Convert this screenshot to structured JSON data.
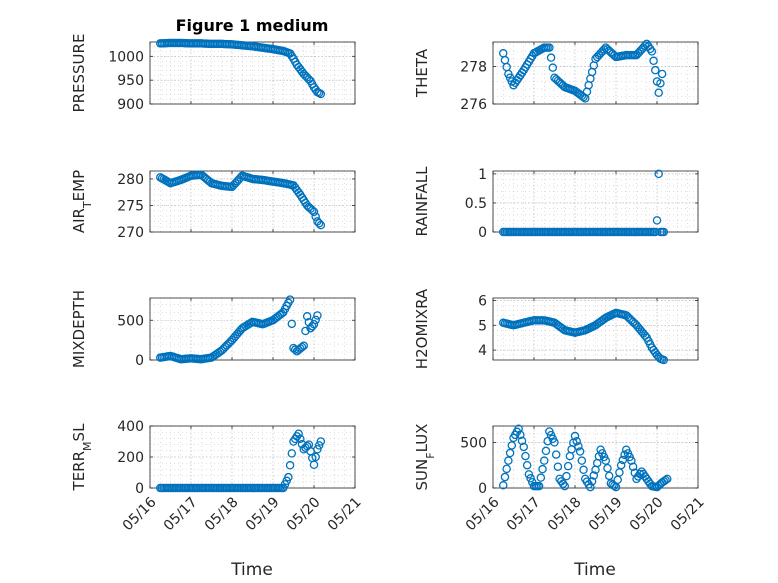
{
  "title": "Figure 1 medium",
  "xlabel": "Time",
  "x_tick_labels": [
    "05/16",
    "05/17",
    "05/18",
    "05/19",
    "05/20",
    "05/21"
  ],
  "colors": {
    "marker": "#0072BD",
    "axis": "#262626",
    "grid": "#b0b0b0"
  },
  "chart_data": [
    {
      "type": "scatter",
      "ylabel": "PRESSURE",
      "ylim": [
        900,
        1030
      ],
      "yticks": [
        900,
        950,
        1000
      ],
      "grid": true,
      "x": [
        "05/16 06:00",
        "05/16 12:00",
        "05/16 18:00",
        "05/17 00:00",
        "05/17 06:00",
        "05/17 12:00",
        "05/17 18:00",
        "05/18 00:00",
        "05/18 06:00",
        "05/18 12:00",
        "05/18 18:00",
        "05/19 00:00",
        "05/19 06:00",
        "05/19 10:00",
        "05/19 12:00",
        "05/19 14:00",
        "05/19 18:00",
        "05/19 22:00",
        "05/20 00:00",
        "05/20 02:00",
        "05/20 04:00"
      ],
      "values": [
        1027,
        1028,
        1028,
        1027,
        1027,
        1026,
        1026,
        1025,
        1023,
        1021,
        1018,
        1015,
        1011,
        1006,
        995,
        982,
        963,
        948,
        935,
        925,
        921
      ]
    },
    {
      "type": "scatter",
      "ylabel": "THETA",
      "ylim": [
        276,
        279.3
      ],
      "yticks": [
        276,
        278
      ],
      "grid": true,
      "x": [
        "05/16 06:00",
        "05/16 09:00",
        "05/16 12:00",
        "05/16 18:00",
        "05/17 00:00",
        "05/17 06:00",
        "05/17 09:00",
        "05/17 12:00",
        "05/17 18:00",
        "05/18 00:00",
        "05/18 06:00",
        "05/18 12:00",
        "05/18 18:00",
        "05/19 00:00",
        "05/19 06:00",
        "05/19 12:00",
        "05/19 18:00",
        "05/19 21:00",
        "05/19 23:00",
        "05/20 01:00",
        "05/20 03:00"
      ],
      "values": [
        278.7,
        277.6,
        277.0,
        277.8,
        278.7,
        279.0,
        279.0,
        277.4,
        276.9,
        276.7,
        276.3,
        278.4,
        279.0,
        278.5,
        278.6,
        278.6,
        279.2,
        278.8,
        277.8,
        276.6,
        277.6
      ]
    },
    {
      "type": "scatter",
      "ylabel": "AIR_TEMP",
      "ylim": [
        270,
        281.5
      ],
      "yticks": [
        270,
        275,
        280
      ],
      "grid": true,
      "x": [
        "05/16 06:00",
        "05/16 12:00",
        "05/16 18:00",
        "05/17 00:00",
        "05/17 06:00",
        "05/17 12:00",
        "05/17 18:00",
        "05/18 00:00",
        "05/18 06:00",
        "05/18 12:00",
        "05/18 18:00",
        "05/19 00:00",
        "05/19 06:00",
        "05/19 12:00",
        "05/19 16:00",
        "05/19 20:00",
        "05/20 00:00",
        "05/20 02:00",
        "05/20 04:00"
      ],
      "values": [
        280.3,
        279.2,
        279.8,
        280.6,
        280.8,
        279.2,
        278.7,
        278.5,
        280.6,
        280.0,
        279.8,
        279.5,
        279.2,
        278.8,
        277.0,
        275.0,
        273.8,
        272.0,
        271.3
      ]
    },
    {
      "type": "scatter",
      "ylabel": "RAINFALL",
      "ylim": [
        0,
        1.05
      ],
      "yticks": [
        0,
        0.5,
        1
      ],
      "grid": true,
      "x": [
        "05/16 06:00",
        "05/16 12:00",
        "05/16 18:00",
        "05/17 00:00",
        "05/17 06:00",
        "05/17 12:00",
        "05/17 18:00",
        "05/18 00:00",
        "05/18 06:00",
        "05/18 12:00",
        "05/18 18:00",
        "05/19 00:00",
        "05/19 06:00",
        "05/19 12:00",
        "05/19 18:00",
        "05/19 23:00",
        "05/20 00:00",
        "05/20 01:00",
        "05/20 02:00",
        "05/20 04:00"
      ],
      "values": [
        0,
        0,
        0,
        0,
        0,
        0,
        0,
        0,
        0,
        0,
        0,
        0,
        0,
        0,
        0,
        0,
        0.2,
        1.0,
        0,
        0
      ]
    },
    {
      "type": "scatter",
      "ylabel": "MIXDEPTH",
      "ylim": [
        0,
        780
      ],
      "yticks": [
        0,
        500
      ],
      "grid": true,
      "x": [
        "05/16 06:00",
        "05/16 12:00",
        "05/16 18:00",
        "05/17 00:00",
        "05/17 06:00",
        "05/17 12:00",
        "05/17 18:00",
        "05/18 00:00",
        "05/18 06:00",
        "05/18 12:00",
        "05/18 18:00",
        "05/19 00:00",
        "05/19 06:00",
        "05/19 10:00",
        "05/19 12:00",
        "05/19 14:00",
        "05/19 18:00",
        "05/19 20:00",
        "05/19 22:00",
        "05/20 00:00",
        "05/20 02:00"
      ],
      "values": [
        30,
        50,
        10,
        20,
        10,
        30,
        120,
        250,
        400,
        480,
        450,
        500,
        600,
        760,
        150,
        110,
        180,
        550,
        400,
        450,
        560
      ]
    },
    {
      "type": "scatter",
      "ylabel": "H2OMIXRA",
      "ylim": [
        3.6,
        6.1
      ],
      "yticks": [
        4,
        5,
        6
      ],
      "grid": true,
      "x": [
        "05/16 06:00",
        "05/16 12:00",
        "05/16 18:00",
        "05/17 00:00",
        "05/17 06:00",
        "05/17 12:00",
        "05/17 18:00",
        "05/18 00:00",
        "05/18 06:00",
        "05/18 12:00",
        "05/18 18:00",
        "05/19 00:00",
        "05/19 06:00",
        "05/19 12:00",
        "05/19 18:00",
        "05/19 21:00",
        "05/20 00:00",
        "05/20 02:00",
        "05/20 04:00"
      ],
      "values": [
        5.1,
        5.0,
        5.1,
        5.2,
        5.2,
        5.1,
        4.8,
        4.7,
        4.8,
        5.0,
        5.3,
        5.5,
        5.4,
        5.0,
        4.5,
        4.1,
        3.8,
        3.65,
        3.6
      ]
    },
    {
      "type": "scatter",
      "ylabel": "TERR_MSL",
      "ylim": [
        0,
        400
      ],
      "yticks": [
        0,
        200,
        400
      ],
      "grid": true,
      "x": [
        "05/16 06:00",
        "05/16 12:00",
        "05/16 18:00",
        "05/17 00:00",
        "05/17 06:00",
        "05/17 12:00",
        "05/17 18:00",
        "05/18 00:00",
        "05/18 06:00",
        "05/18 12:00",
        "05/18 18:00",
        "05/19 00:00",
        "05/19 06:00",
        "05/19 09:00",
        "05/19 12:00",
        "05/19 15:00",
        "05/19 18:00",
        "05/19 21:00",
        "05/20 00:00",
        "05/20 02:00",
        "05/20 04:00"
      ],
      "values": [
        0,
        0,
        0,
        0,
        0,
        0,
        0,
        0,
        0,
        0,
        0,
        0,
        0,
        70,
        300,
        350,
        250,
        280,
        150,
        250,
        300
      ]
    },
    {
      "type": "scatter",
      "ylabel": "SUN_FLUX",
      "ylim": [
        0,
        680
      ],
      "yticks": [
        0,
        500
      ],
      "grid": true,
      "x": [
        "05/16 06:00",
        "05/16 09:00",
        "05/16 12:00",
        "05/16 15:00",
        "05/16 18:00",
        "05/16 21:00",
        "05/17 00:00",
        "05/17 03:00",
        "05/17 06:00",
        "05/17 09:00",
        "05/17 12:00",
        "05/17 15:00",
        "05/17 18:00",
        "05/17 21:00",
        "05/18 00:00",
        "05/18 03:00",
        "05/18 06:00",
        "05/18 09:00",
        "05/18 12:00",
        "05/18 15:00",
        "05/18 18:00",
        "05/18 21:00",
        "05/19 00:00",
        "05/19 03:00",
        "05/19 06:00",
        "05/19 09:00",
        "05/19 12:00",
        "05/19 15:00",
        "05/19 18:00",
        "05/19 21:00",
        "05/20 00:00",
        "05/20 03:00",
        "05/20 06:00"
      ],
      "values": [
        30,
        300,
        550,
        650,
        450,
        150,
        20,
        20,
        300,
        620,
        500,
        100,
        20,
        350,
        570,
        400,
        100,
        10,
        200,
        420,
        300,
        50,
        10,
        250,
        420,
        300,
        100,
        180,
        100,
        20,
        10,
        60,
        100
      ]
    }
  ]
}
